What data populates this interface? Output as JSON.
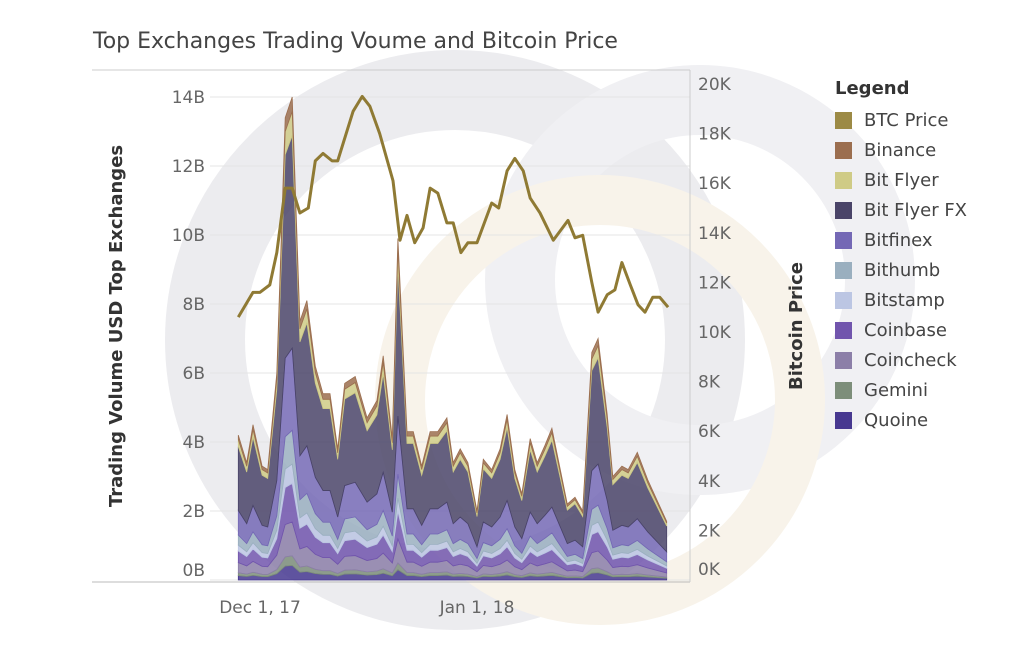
{
  "chart_data": {
    "type": "area",
    "title": "Top Exchanges Trading Voume and Bitcoin Price",
    "ylabel": "Trading Volume USD Top Exchanges",
    "ylabel_right": "Bitcoin Price",
    "x_unit": "days since Dec 1, 2017",
    "x_ticks": [
      {
        "x": 0,
        "label": "Dec 1, 17"
      },
      {
        "x": 31,
        "label": "Jan 1, 18"
      }
    ],
    "y_ticks": [
      {
        "v": 0,
        "label": "0B"
      },
      {
        "v": 2,
        "label": "2B"
      },
      {
        "v": 4,
        "label": "4B"
      },
      {
        "v": 6,
        "label": "6B"
      },
      {
        "v": 8,
        "label": "8B"
      },
      {
        "v": 10,
        "label": "10B"
      },
      {
        "v": 12,
        "label": "12B"
      },
      {
        "v": 14,
        "label": "14B"
      }
    ],
    "y_right_ticks": [
      {
        "v": 0,
        "label": "0K"
      },
      {
        "v": 2,
        "label": "2K"
      },
      {
        "v": 4,
        "label": "4K"
      },
      {
        "v": 6,
        "label": "6K"
      },
      {
        "v": 8,
        "label": "8K"
      },
      {
        "v": 10,
        "label": "10K"
      },
      {
        "v": 12,
        "label": "12K"
      },
      {
        "v": 14,
        "label": "14K"
      },
      {
        "v": 16,
        "label": "16K"
      },
      {
        "v": 18,
        "label": "18K"
      },
      {
        "v": 20,
        "label": "20K"
      }
    ],
    "ylim": [
      0,
      14.5
    ],
    "ylim_right": [
      0,
      20
    ],
    "legend_title": "Legend",
    "legend_position": "right",
    "volume_x": [
      -3.1,
      -1.9,
      -1,
      0.3,
      1.1,
      2.4,
      3.6,
      4.6,
      5.7,
      6.7,
      7.9,
      9,
      10,
      11.1,
      12.1,
      13.6,
      15.3,
      16.7,
      17.6,
      18.9,
      19.7,
      21,
      21.9,
      23.1,
      24.3,
      25.4,
      26.7,
      27.6,
      28.6,
      29.7,
      31,
      31.9,
      33.1,
      34.3,
      35.3,
      36.4,
      37.4,
      38.6,
      39.6,
      40.7,
      41.7,
      42.9,
      43.9,
      45,
      46.1,
      47.4,
      48.3,
      49.6,
      50.4,
      51.7,
      52.6,
      53.9,
      55.4,
      58.1
    ],
    "volume_total_billions": [
      4.2,
      3.4,
      4.5,
      3.3,
      3.2,
      6.0,
      13.4,
      14.0,
      7.5,
      8.1,
      6.2,
      5.4,
      5.4,
      3.8,
      5.7,
      5.9,
      4.7,
      5.2,
      6.5,
      4.1,
      9.9,
      4.3,
      4.3,
      3.3,
      4.3,
      4.3,
      4.7,
      3.4,
      3.8,
      3.4,
      2.0,
      3.5,
      3.2,
      3.8,
      4.8,
      3.2,
      2.5,
      4.1,
      3.4,
      3.9,
      4.4,
      3.2,
      2.2,
      2.4,
      2.0,
      6.6,
      7.0,
      4.8,
      3.0,
      3.3,
      3.2,
      3.7,
      2.9,
      1.7
    ],
    "series": [
      {
        "name": "BTC Price",
        "color": "#9c8a45",
        "kind": "line",
        "x": [
          -3.1,
          -1,
          0,
          1.4,
          2.4,
          3.6,
          4.6,
          5.7,
          6.9,
          7.9,
          9,
          10.3,
          11.1,
          13.3,
          14.6,
          15.7,
          17.1,
          19,
          20,
          21,
          22.1,
          23.3,
          24.3,
          25.4,
          26.7,
          27.6,
          28.7,
          29.7,
          31,
          33.1,
          34.1,
          35.3,
          36.4,
          37.6,
          38.6,
          40,
          41.9,
          44,
          45,
          46.1,
          47.4,
          48.3,
          49.6,
          50.7,
          51.7,
          52.9,
          54,
          55,
          56.1,
          57.1,
          58.3
        ],
        "values_k": [
          10.6,
          11.6,
          11.6,
          11.9,
          13.2,
          15.8,
          15.8,
          14.8,
          15.0,
          16.9,
          17.2,
          16.9,
          16.9,
          18.9,
          19.5,
          19.1,
          18.0,
          16.1,
          13.7,
          14.7,
          13.6,
          14.2,
          15.8,
          15.6,
          14.4,
          14.4,
          13.2,
          13.6,
          13.6,
          15.2,
          15.0,
          16.5,
          17.0,
          16.5,
          15.4,
          14.8,
          13.7,
          14.5,
          13.8,
          13.9,
          12.0,
          10.8,
          11.5,
          11.7,
          12.8,
          11.9,
          11.1,
          10.8,
          11.4,
          11.4,
          11.0
        ]
      },
      {
        "name": "Binance",
        "color": "#9b6e4f",
        "share": 0.03
      },
      {
        "name": "Bit Flyer",
        "color": "#cfcb86",
        "share": 0.05
      },
      {
        "name": "Bit Flyer FX",
        "color": "#4a4468",
        "share": 0.44
      },
      {
        "name": "Bitfinex",
        "color": "#7468b5",
        "share": 0.17
      },
      {
        "name": "Bithumb",
        "color": "#9aafbf",
        "share": 0.07
      },
      {
        "name": "Bitstamp",
        "color": "#bcc6e3",
        "share": 0.04
      },
      {
        "name": "Coinbase",
        "color": "#7155ad",
        "share": 0.08
      },
      {
        "name": "Coincheck",
        "color": "#8c7fa8",
        "share": 0.07
      },
      {
        "name": "Gemini",
        "color": "#7d8e7a",
        "share": 0.02
      },
      {
        "name": "Quoine",
        "color": "#473890",
        "share": 0.03
      }
    ]
  }
}
